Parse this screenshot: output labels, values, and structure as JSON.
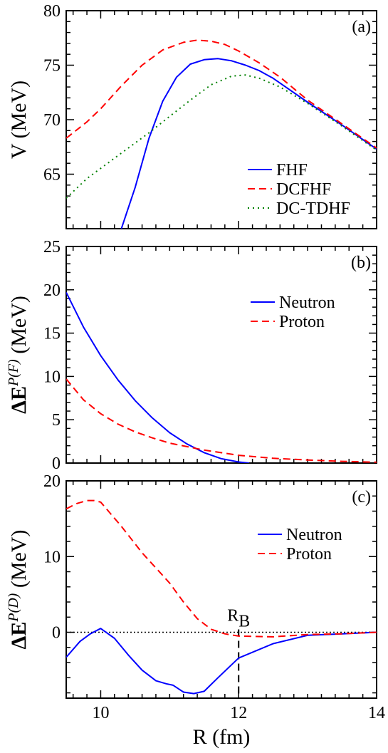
{
  "chart_data": [
    {
      "type": "line",
      "panel_label": "(a)",
      "ylabel": "V (MeV)",
      "xlim": [
        9.5,
        14
      ],
      "ylim": [
        60,
        80
      ],
      "yticks": [
        65,
        70,
        75,
        80
      ],
      "grid": false,
      "legend_position": "bottom-right",
      "series": [
        {
          "name": "FHF",
          "color": "#0000ff",
          "dash": "solid",
          "x": [
            10.3,
            10.5,
            10.7,
            10.9,
            11.1,
            11.3,
            11.5,
            11.7,
            11.9,
            12.1,
            12.3,
            12.5,
            13.0,
            13.5,
            14.0
          ],
          "y": [
            60.0,
            63.8,
            68.3,
            71.7,
            73.9,
            75.1,
            75.5,
            75.6,
            75.4,
            75.0,
            74.5,
            73.8,
            71.6,
            69.5,
            67.3
          ]
        },
        {
          "name": "DCFHF",
          "color": "#ff0000",
          "dash": "dashed",
          "x": [
            9.5,
            9.8,
            10.0,
            10.3,
            10.6,
            10.9,
            11.2,
            11.4,
            11.6,
            11.8,
            12.0,
            12.3,
            12.6,
            13.0,
            13.5,
            14.0
          ],
          "y": [
            68.3,
            69.8,
            71.0,
            73.1,
            75.0,
            76.4,
            77.1,
            77.3,
            77.2,
            76.9,
            76.3,
            75.2,
            73.9,
            71.8,
            69.6,
            67.4
          ]
        },
        {
          "name": "DC-TDHF",
          "color": "#008000",
          "dash": "dotted",
          "x": [
            9.5,
            9.8,
            10.1,
            10.4,
            10.7,
            11.0,
            11.3,
            11.6,
            11.9,
            12.1,
            12.3,
            12.6,
            13.0,
            13.5,
            14.0
          ],
          "y": [
            62.8,
            64.6,
            66.0,
            67.4,
            68.8,
            70.3,
            71.8,
            73.2,
            74.0,
            74.1,
            73.8,
            73.0,
            71.5,
            69.4,
            67.2
          ]
        }
      ]
    },
    {
      "type": "line",
      "panel_label": "(b)",
      "ylabel": "ΔE",
      "ylabel_sup": "P(F)",
      "ylabel_unit": " (MeV)",
      "xlim": [
        9.5,
        14
      ],
      "ylim": [
        0,
        25
      ],
      "yticks": [
        0,
        5,
        10,
        15,
        20,
        25
      ],
      "grid": false,
      "legend_position": "top-right",
      "series": [
        {
          "name": "Neutron",
          "color": "#0000ff",
          "dash": "solid",
          "x": [
            9.5,
            9.75,
            10.0,
            10.25,
            10.5,
            10.75,
            11.0,
            11.25,
            11.5,
            11.75,
            12.0,
            12.15
          ],
          "y": [
            19.7,
            15.7,
            12.4,
            9.6,
            7.2,
            5.2,
            3.5,
            2.2,
            1.2,
            0.5,
            0.12,
            0.0
          ]
        },
        {
          "name": "Proton",
          "color": "#ff0000",
          "dash": "dashed",
          "x": [
            9.5,
            9.75,
            10.0,
            10.25,
            10.5,
            10.75,
            11.0,
            11.5,
            12.0,
            12.5,
            13.0,
            13.5,
            14.0
          ],
          "y": [
            9.7,
            7.3,
            5.7,
            4.5,
            3.6,
            2.9,
            2.3,
            1.5,
            0.9,
            0.55,
            0.35,
            0.2,
            0.1
          ]
        }
      ]
    },
    {
      "type": "line",
      "panel_label": "(c)",
      "ylabel": "ΔE",
      "ylabel_sup": "P(D)",
      "ylabel_unit": " (MeV)",
      "xlabel": "R (fm)",
      "xlim": [
        9.5,
        14
      ],
      "xticks": [
        10,
        12,
        14
      ],
      "ylim": [
        -8.7,
        20
      ],
      "yticks": [
        0,
        10,
        20
      ],
      "grid": false,
      "legend_position": "top-right",
      "reference_line_y": 0,
      "annotation": {
        "text": "R",
        "subscript": "B",
        "x": 12
      },
      "series": [
        {
          "name": "Neutron",
          "color": "#0000ff",
          "dash": "solid",
          "x": [
            9.5,
            9.7,
            9.85,
            10.0,
            10.2,
            10.4,
            10.6,
            10.8,
            10.95,
            11.05,
            11.2,
            11.35,
            11.5,
            11.7,
            12.0,
            12.5,
            13.0,
            13.5,
            14.0
          ],
          "y": [
            -3.3,
            -1.2,
            -0.2,
            0.5,
            -0.8,
            -3.0,
            -5.0,
            -6.4,
            -6.8,
            -7.0,
            -7.9,
            -8.1,
            -7.8,
            -6.0,
            -3.4,
            -1.5,
            -0.4,
            -0.2,
            0.0
          ]
        },
        {
          "name": "Proton",
          "color": "#ff0000",
          "dash": "dashed",
          "x": [
            9.5,
            9.65,
            9.8,
            9.9,
            10.0,
            10.3,
            10.6,
            10.9,
            11.0,
            11.2,
            11.4,
            11.6,
            11.8,
            12.0,
            12.5,
            13.0,
            13.5,
            14.0
          ],
          "y": [
            16.3,
            17.0,
            17.4,
            17.4,
            17.2,
            14.0,
            10.5,
            7.5,
            6.5,
            4.0,
            1.8,
            0.4,
            -0.2,
            -0.5,
            -0.6,
            -0.3,
            -0.2,
            0.0
          ]
        }
      ]
    }
  ]
}
